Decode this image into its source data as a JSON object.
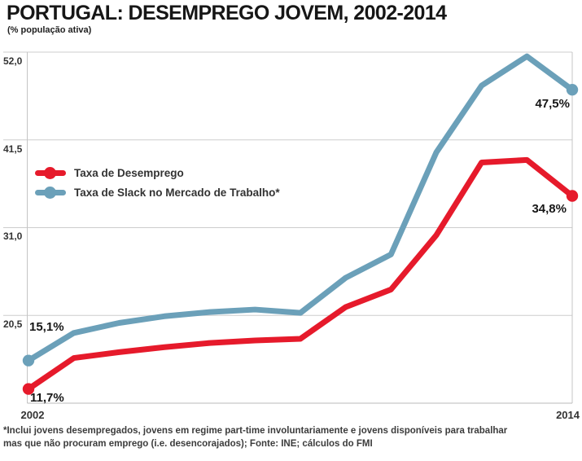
{
  "header": {
    "title": "PORTUGAL: DESEMPREGO JOVEM, 2002-2014",
    "subtitle": "(% população ativa)"
  },
  "legend": {
    "items": [
      {
        "label": "Taxa de Desemprego",
        "color": "#e61a2b"
      },
      {
        "label": "Taxa de Slack no Mercado de Trabalho*",
        "color": "#6ba0b9"
      }
    ]
  },
  "chart_data": {
    "type": "line",
    "title": "PORTUGAL: DESEMPREGO JOVEM, 2002-2014",
    "subtitle": "(% população ativa)",
    "x": [
      2002,
      2003,
      2004,
      2005,
      2006,
      2007,
      2008,
      2009,
      2010,
      2011,
      2012,
      2013,
      2014
    ],
    "series": [
      {
        "name": "Taxa de Desemprego",
        "color": "#e61a2b",
        "values": [
          11.7,
          15.4,
          16.1,
          16.7,
          17.2,
          17.5,
          17.7,
          21.5,
          23.6,
          30.1,
          38.8,
          39.1,
          34.8
        ],
        "start_label": "11,7%",
        "end_label": "34,8%"
      },
      {
        "name": "Taxa de Slack no Mercado de Trabalho*",
        "color": "#6ba0b9",
        "values": [
          15.1,
          18.4,
          19.6,
          20.4,
          20.9,
          21.2,
          20.8,
          25.0,
          27.8,
          40.0,
          48.0,
          51.5,
          47.5
        ],
        "start_label": "15,1%",
        "end_label": "47,5%"
      }
    ],
    "ylim": [
      10,
      52
    ],
    "yticks": [
      {
        "label": "52,0",
        "value": 52.0
      },
      {
        "label": "41,5",
        "value": 41.5
      },
      {
        "label": "31,0",
        "value": 31.0
      },
      {
        "label": "20,5",
        "value": 20.5
      }
    ],
    "xticks": [
      {
        "label": "2002"
      },
      {
        "label": "2014"
      }
    ],
    "grid": "horizontal",
    "legend_position": "upper-left-inside",
    "colors": {
      "gridline": "#cdcdcd",
      "axis": "#c4c4c4",
      "text": "#333333"
    }
  },
  "footnote": {
    "line1": "*Inclui jovens desempregados, jovens em regime part-time involuntariamente e jovens disponíveis para trabalhar",
    "line2": "mas que não procuram emprego (i.e. desencorajados); Fonte: INE; cálculos do FMI"
  }
}
